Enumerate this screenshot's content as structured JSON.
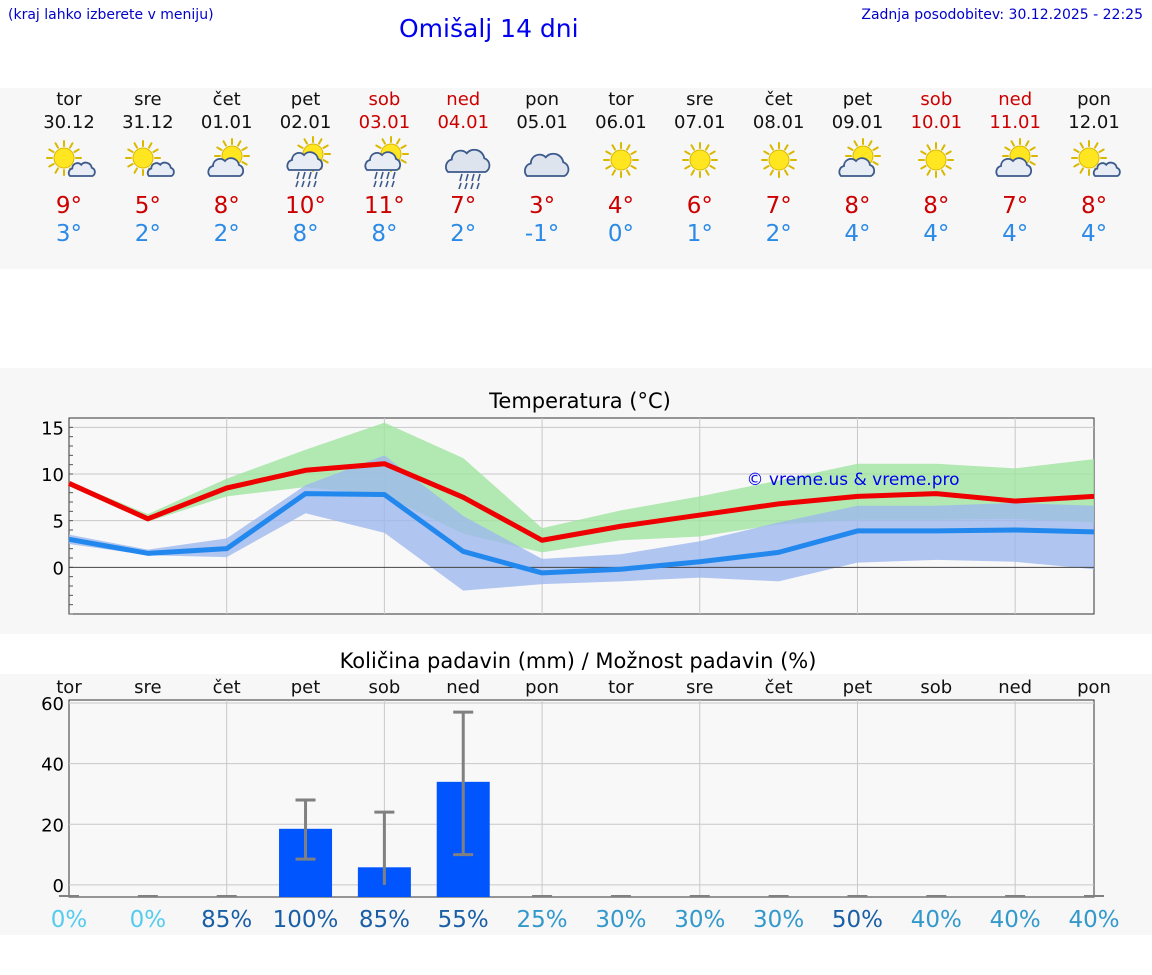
{
  "header": {
    "hint": "(kraj lahko izberete v meniju)",
    "title": "Omišalj 14 dni",
    "updated": "Zadnja posodobitev: 30.12.2025 - 22:25"
  },
  "days": [
    {
      "name": "tor",
      "date": "30.12",
      "weekend": false,
      "icon": "sun-cloud-icon",
      "max": "9°",
      "min": "3°"
    },
    {
      "name": "sre",
      "date": "31.12",
      "weekend": false,
      "icon": "sun-cloud-icon",
      "max": "5°",
      "min": "2°"
    },
    {
      "name": "čet",
      "date": "01.01",
      "weekend": false,
      "icon": "cloud-sun-icon",
      "max": "8°",
      "min": "2°"
    },
    {
      "name": "pet",
      "date": "02.01",
      "weekend": false,
      "icon": "cloud-sun-rain-icon",
      "max": "10°",
      "min": "8°"
    },
    {
      "name": "sob",
      "date": "03.01",
      "weekend": true,
      "icon": "cloud-sun-rain-icon",
      "max": "11°",
      "min": "8°"
    },
    {
      "name": "ned",
      "date": "04.01",
      "weekend": true,
      "icon": "cloud-rain-icon",
      "max": "7°",
      "min": "2°"
    },
    {
      "name": "pon",
      "date": "05.01",
      "weekend": false,
      "icon": "cloud-icon",
      "max": "3°",
      "min": "-1°"
    },
    {
      "name": "tor",
      "date": "06.01",
      "weekend": false,
      "icon": "sun-icon",
      "max": "4°",
      "min": "0°"
    },
    {
      "name": "sre",
      "date": "07.01",
      "weekend": false,
      "icon": "sun-icon",
      "max": "6°",
      "min": "1°"
    },
    {
      "name": "čet",
      "date": "08.01",
      "weekend": false,
      "icon": "sun-icon",
      "max": "7°",
      "min": "2°"
    },
    {
      "name": "pet",
      "date": "09.01",
      "weekend": false,
      "icon": "cloud-sun-icon",
      "max": "8°",
      "min": "4°"
    },
    {
      "name": "sob",
      "date": "10.01",
      "weekend": true,
      "icon": "sun-icon",
      "max": "8°",
      "min": "4°"
    },
    {
      "name": "ned",
      "date": "11.01",
      "weekend": true,
      "icon": "cloud-sun-icon",
      "max": "7°",
      "min": "4°"
    },
    {
      "name": "pon",
      "date": "12.01",
      "weekend": false,
      "icon": "sun-cloud-icon",
      "max": "8°",
      "min": "4°"
    }
  ],
  "colors": {
    "max_line": "#ee0000",
    "min_line": "#2288ee",
    "max_band": "#a0e4a0",
    "min_band": "#9db8ee",
    "bar": "#0055ff",
    "error": "#808080",
    "weekend": "#cc0000",
    "accent": "#0000ee"
  },
  "chart_data": [
    {
      "type": "line",
      "title": "Temperatura (°C)",
      "watermark": "© vreme.us & vreme.pro",
      "ylim": [
        -5,
        16
      ],
      "yticks": [
        0,
        5,
        10,
        15
      ],
      "series": [
        {
          "name": "max",
          "values": [
            9,
            5.2,
            8.5,
            10.4,
            11.1,
            7.5,
            2.9,
            4.4,
            5.6,
            6.8,
            7.6,
            7.9,
            7.1,
            7.6
          ],
          "band_low": [
            8.7,
            4.9,
            7.6,
            8.6,
            7.7,
            3.6,
            1.6,
            2.9,
            3.3,
            4.6,
            5.1,
            5.1,
            5.2,
            4.8
          ],
          "band_high": [
            9.2,
            5.7,
            9.5,
            12.6,
            15.5,
            11.7,
            4.2,
            6.1,
            7.6,
            9.3,
            11.1,
            11.1,
            10.6,
            11.6
          ]
        },
        {
          "name": "min",
          "values": [
            3,
            1.5,
            2,
            7.9,
            7.8,
            1.7,
            -0.6,
            -0.2,
            0.6,
            1.6,
            3.9,
            3.9,
            4,
            3.8
          ],
          "band_low": [
            2.5,
            1.3,
            1.1,
            5.8,
            3.7,
            -2.5,
            -1.8,
            -1.5,
            -1.1,
            -1.5,
            0.5,
            0.8,
            0.6,
            -0.2
          ],
          "band_high": [
            3.5,
            1.9,
            3.1,
            8.8,
            12,
            5.5,
            0.9,
            1.4,
            2.8,
            4.8,
            6.6,
            6.6,
            6.9,
            6.6
          ]
        }
      ]
    },
    {
      "type": "bar",
      "title": "Količina padavin (mm) / Možnost padavin (%)",
      "categories": [
        "tor",
        "sre",
        "čet",
        "pet",
        "sob",
        "ned",
        "pon",
        "tor",
        "sre",
        "čet",
        "pet",
        "sob",
        "ned",
        "pon"
      ],
      "ylim": [
        -4,
        61
      ],
      "yticks": [
        0,
        20,
        40,
        60
      ],
      "values": [
        0,
        0,
        0,
        18.5,
        5.8,
        34,
        0,
        0,
        0,
        0,
        0,
        0,
        0,
        0
      ],
      "error_low": [
        0,
        0,
        0,
        8.5,
        0,
        10,
        0,
        0,
        0,
        0,
        0,
        0,
        0,
        0
      ],
      "error_high": [
        0,
        0,
        0,
        28,
        24,
        57,
        0,
        0,
        0,
        0,
        0,
        0,
        0,
        0
      ],
      "probability": [
        "0%",
        "0%",
        "85%",
        "100%",
        "85%",
        "55%",
        "25%",
        "30%",
        "30%",
        "30%",
        "50%",
        "40%",
        "40%",
        "40%"
      ],
      "probability_colors": [
        "#55ccee",
        "#55ccee",
        "#1a5fa6",
        "#1a5fa6",
        "#1a5fa6",
        "#1a5fa6",
        "#3399cc",
        "#3399cc",
        "#3399cc",
        "#3399cc",
        "#1a5fa6",
        "#3399cc",
        "#3399cc",
        "#3399cc"
      ]
    }
  ]
}
